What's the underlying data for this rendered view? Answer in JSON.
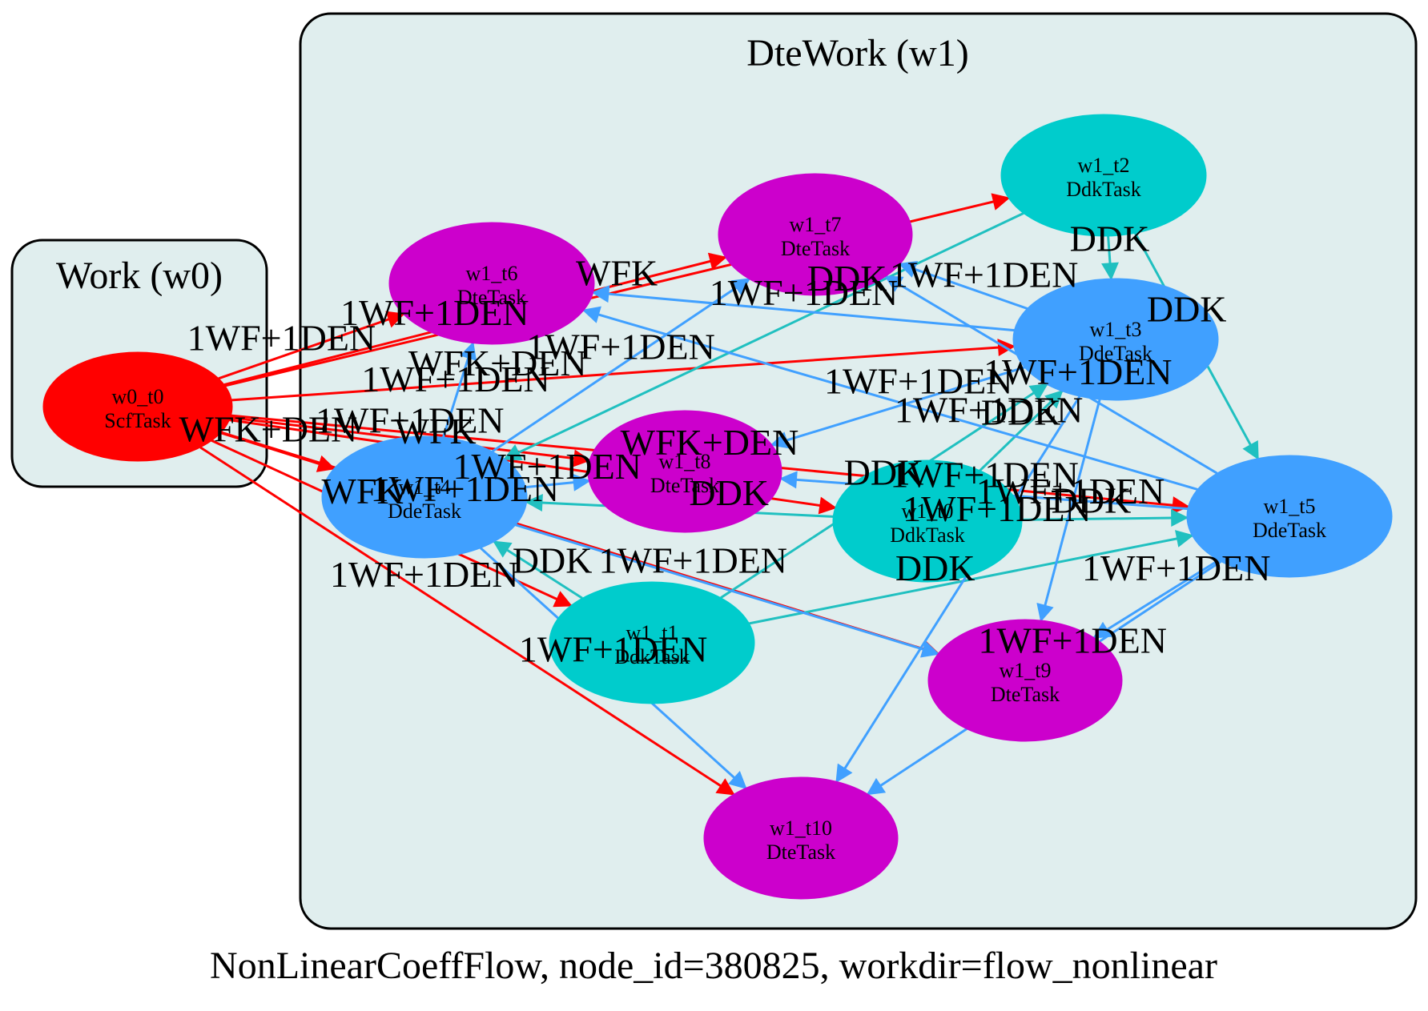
{
  "caption": "NonLinearCoeffFlow, node_id=380825, workdir=flow_nonlinear",
  "colors": {
    "scf": "#ff0000",
    "ddk": "#00cccc",
    "dde": "#40a0ff",
    "dte": "#cc00cc",
    "cluster_fill": "#e0eeee",
    "edge_wfk": "#ff0000",
    "edge_ddk": "#20c0c0",
    "edge_dde": "#40a0ff"
  },
  "clusters": [
    {
      "id": "w0",
      "label": "Work (w0)"
    },
    {
      "id": "w1",
      "label": "DteWork (w1)"
    }
  ],
  "nodes": [
    {
      "id": "w0_t0",
      "name": "w0_t0",
      "type": "ScfTask",
      "kind": "scf"
    },
    {
      "id": "w1_t0",
      "name": "w1_t0",
      "type": "DdkTask",
      "kind": "ddk"
    },
    {
      "id": "w1_t1",
      "name": "w1_t1",
      "type": "DdkTask",
      "kind": "ddk"
    },
    {
      "id": "w1_t2",
      "name": "w1_t2",
      "type": "DdkTask",
      "kind": "ddk"
    },
    {
      "id": "w1_t3",
      "name": "w1_t3",
      "type": "DdeTask",
      "kind": "dde"
    },
    {
      "id": "w1_t4",
      "name": "w1_t4",
      "type": "DdeTask",
      "kind": "dde"
    },
    {
      "id": "w1_t5",
      "name": "w1_t5",
      "type": "DdeTask",
      "kind": "dde"
    },
    {
      "id": "w1_t6",
      "name": "w1_t6",
      "type": "DteTask",
      "kind": "dte"
    },
    {
      "id": "w1_t7",
      "name": "w1_t7",
      "type": "DteTask",
      "kind": "dte"
    },
    {
      "id": "w1_t8",
      "name": "w1_t8",
      "type": "DteTask",
      "kind": "dte"
    },
    {
      "id": "w1_t9",
      "name": "w1_t9",
      "type": "DteTask",
      "kind": "dte"
    },
    {
      "id": "w1_t10",
      "name": "w1_t10",
      "type": "DteTask",
      "kind": "dte"
    }
  ],
  "edges": [
    {
      "from": "w0_t0",
      "to": "w1_t0",
      "label": "WFK",
      "kind": "wfk"
    },
    {
      "from": "w0_t0",
      "to": "w1_t1",
      "label": "WFK",
      "kind": "wfk"
    },
    {
      "from": "w0_t0",
      "to": "w1_t2",
      "label": "WFK",
      "kind": "wfk"
    },
    {
      "from": "w0_t0",
      "to": "w1_t3",
      "label": "WFK+DEN",
      "kind": "wfk"
    },
    {
      "from": "w0_t0",
      "to": "w1_t4",
      "label": "WFK+DEN",
      "kind": "wfk"
    },
    {
      "from": "w0_t0",
      "to": "w1_t5",
      "label": "WFK+DEN",
      "kind": "wfk"
    },
    {
      "from": "w0_t0",
      "to": "w1_t6",
      "label": "1WF+1DEN",
      "kind": "wfk"
    },
    {
      "from": "w0_t0",
      "to": "w1_t7",
      "label": "1WF+1DEN",
      "kind": "wfk"
    },
    {
      "from": "w0_t0",
      "to": "w1_t8",
      "label": "1WF+1DEN",
      "kind": "wfk"
    },
    {
      "from": "w0_t0",
      "to": "w1_t9",
      "label": "1WF+1DEN",
      "kind": "wfk"
    },
    {
      "from": "w0_t0",
      "to": "w1_t10",
      "label": "1WF+1DEN",
      "kind": "wfk"
    },
    {
      "from": "w1_t0",
      "to": "w1_t3",
      "label": "DDK",
      "kind": "ddk"
    },
    {
      "from": "w1_t0",
      "to": "w1_t4",
      "label": "DDK",
      "kind": "ddk"
    },
    {
      "from": "w1_t0",
      "to": "w1_t5",
      "label": "DDK",
      "kind": "ddk"
    },
    {
      "from": "w1_t1",
      "to": "w1_t3",
      "label": "DDK",
      "kind": "ddk"
    },
    {
      "from": "w1_t1",
      "to": "w1_t4",
      "label": "DDK",
      "kind": "ddk"
    },
    {
      "from": "w1_t1",
      "to": "w1_t5",
      "label": "DDK",
      "kind": "ddk"
    },
    {
      "from": "w1_t2",
      "to": "w1_t3",
      "label": "DDK",
      "kind": "ddk"
    },
    {
      "from": "w1_t2",
      "to": "w1_t4",
      "label": "DDK",
      "kind": "ddk"
    },
    {
      "from": "w1_t2",
      "to": "w1_t5",
      "label": "DDK",
      "kind": "ddk"
    },
    {
      "from": "w1_t3",
      "to": "w1_t6",
      "label": "1WF+1DEN",
      "kind": "dde"
    },
    {
      "from": "w1_t3",
      "to": "w1_t7",
      "label": "1WF+1DEN",
      "kind": "dde"
    },
    {
      "from": "w1_t3",
      "to": "w1_t8",
      "label": "1WF+1DEN",
      "kind": "dde"
    },
    {
      "from": "w1_t3",
      "to": "w1_t9",
      "label": "1WF+1DEN",
      "kind": "dde"
    },
    {
      "from": "w1_t3",
      "to": "w1_t10",
      "label": "1WF+1DEN",
      "kind": "dde"
    },
    {
      "from": "w1_t4",
      "to": "w1_t6",
      "label": "1WF+1DEN",
      "kind": "dde"
    },
    {
      "from": "w1_t4",
      "to": "w1_t7",
      "label": "1WF+1DEN",
      "kind": "dde"
    },
    {
      "from": "w1_t4",
      "to": "w1_t8",
      "label": "1WF+1DEN",
      "kind": "dde"
    },
    {
      "from": "w1_t4",
      "to": "w1_t9",
      "label": "1WF+1DEN",
      "kind": "dde"
    },
    {
      "from": "w1_t4",
      "to": "w1_t10",
      "label": "1WF+1DEN",
      "kind": "dde"
    },
    {
      "from": "w1_t5",
      "to": "w1_t6",
      "label": "1WF+1DEN",
      "kind": "dde"
    },
    {
      "from": "w1_t5",
      "to": "w1_t7",
      "label": "1WF+1DEN",
      "kind": "dde"
    },
    {
      "from": "w1_t5",
      "to": "w1_t8",
      "label": "1WF+1DEN",
      "kind": "dde"
    },
    {
      "from": "w1_t5",
      "to": "w1_t9",
      "label": "1WF+1DEN",
      "kind": "dde"
    },
    {
      "from": "w1_t5",
      "to": "w1_t10",
      "label": "1WF+1DEN",
      "kind": "dde"
    }
  ]
}
